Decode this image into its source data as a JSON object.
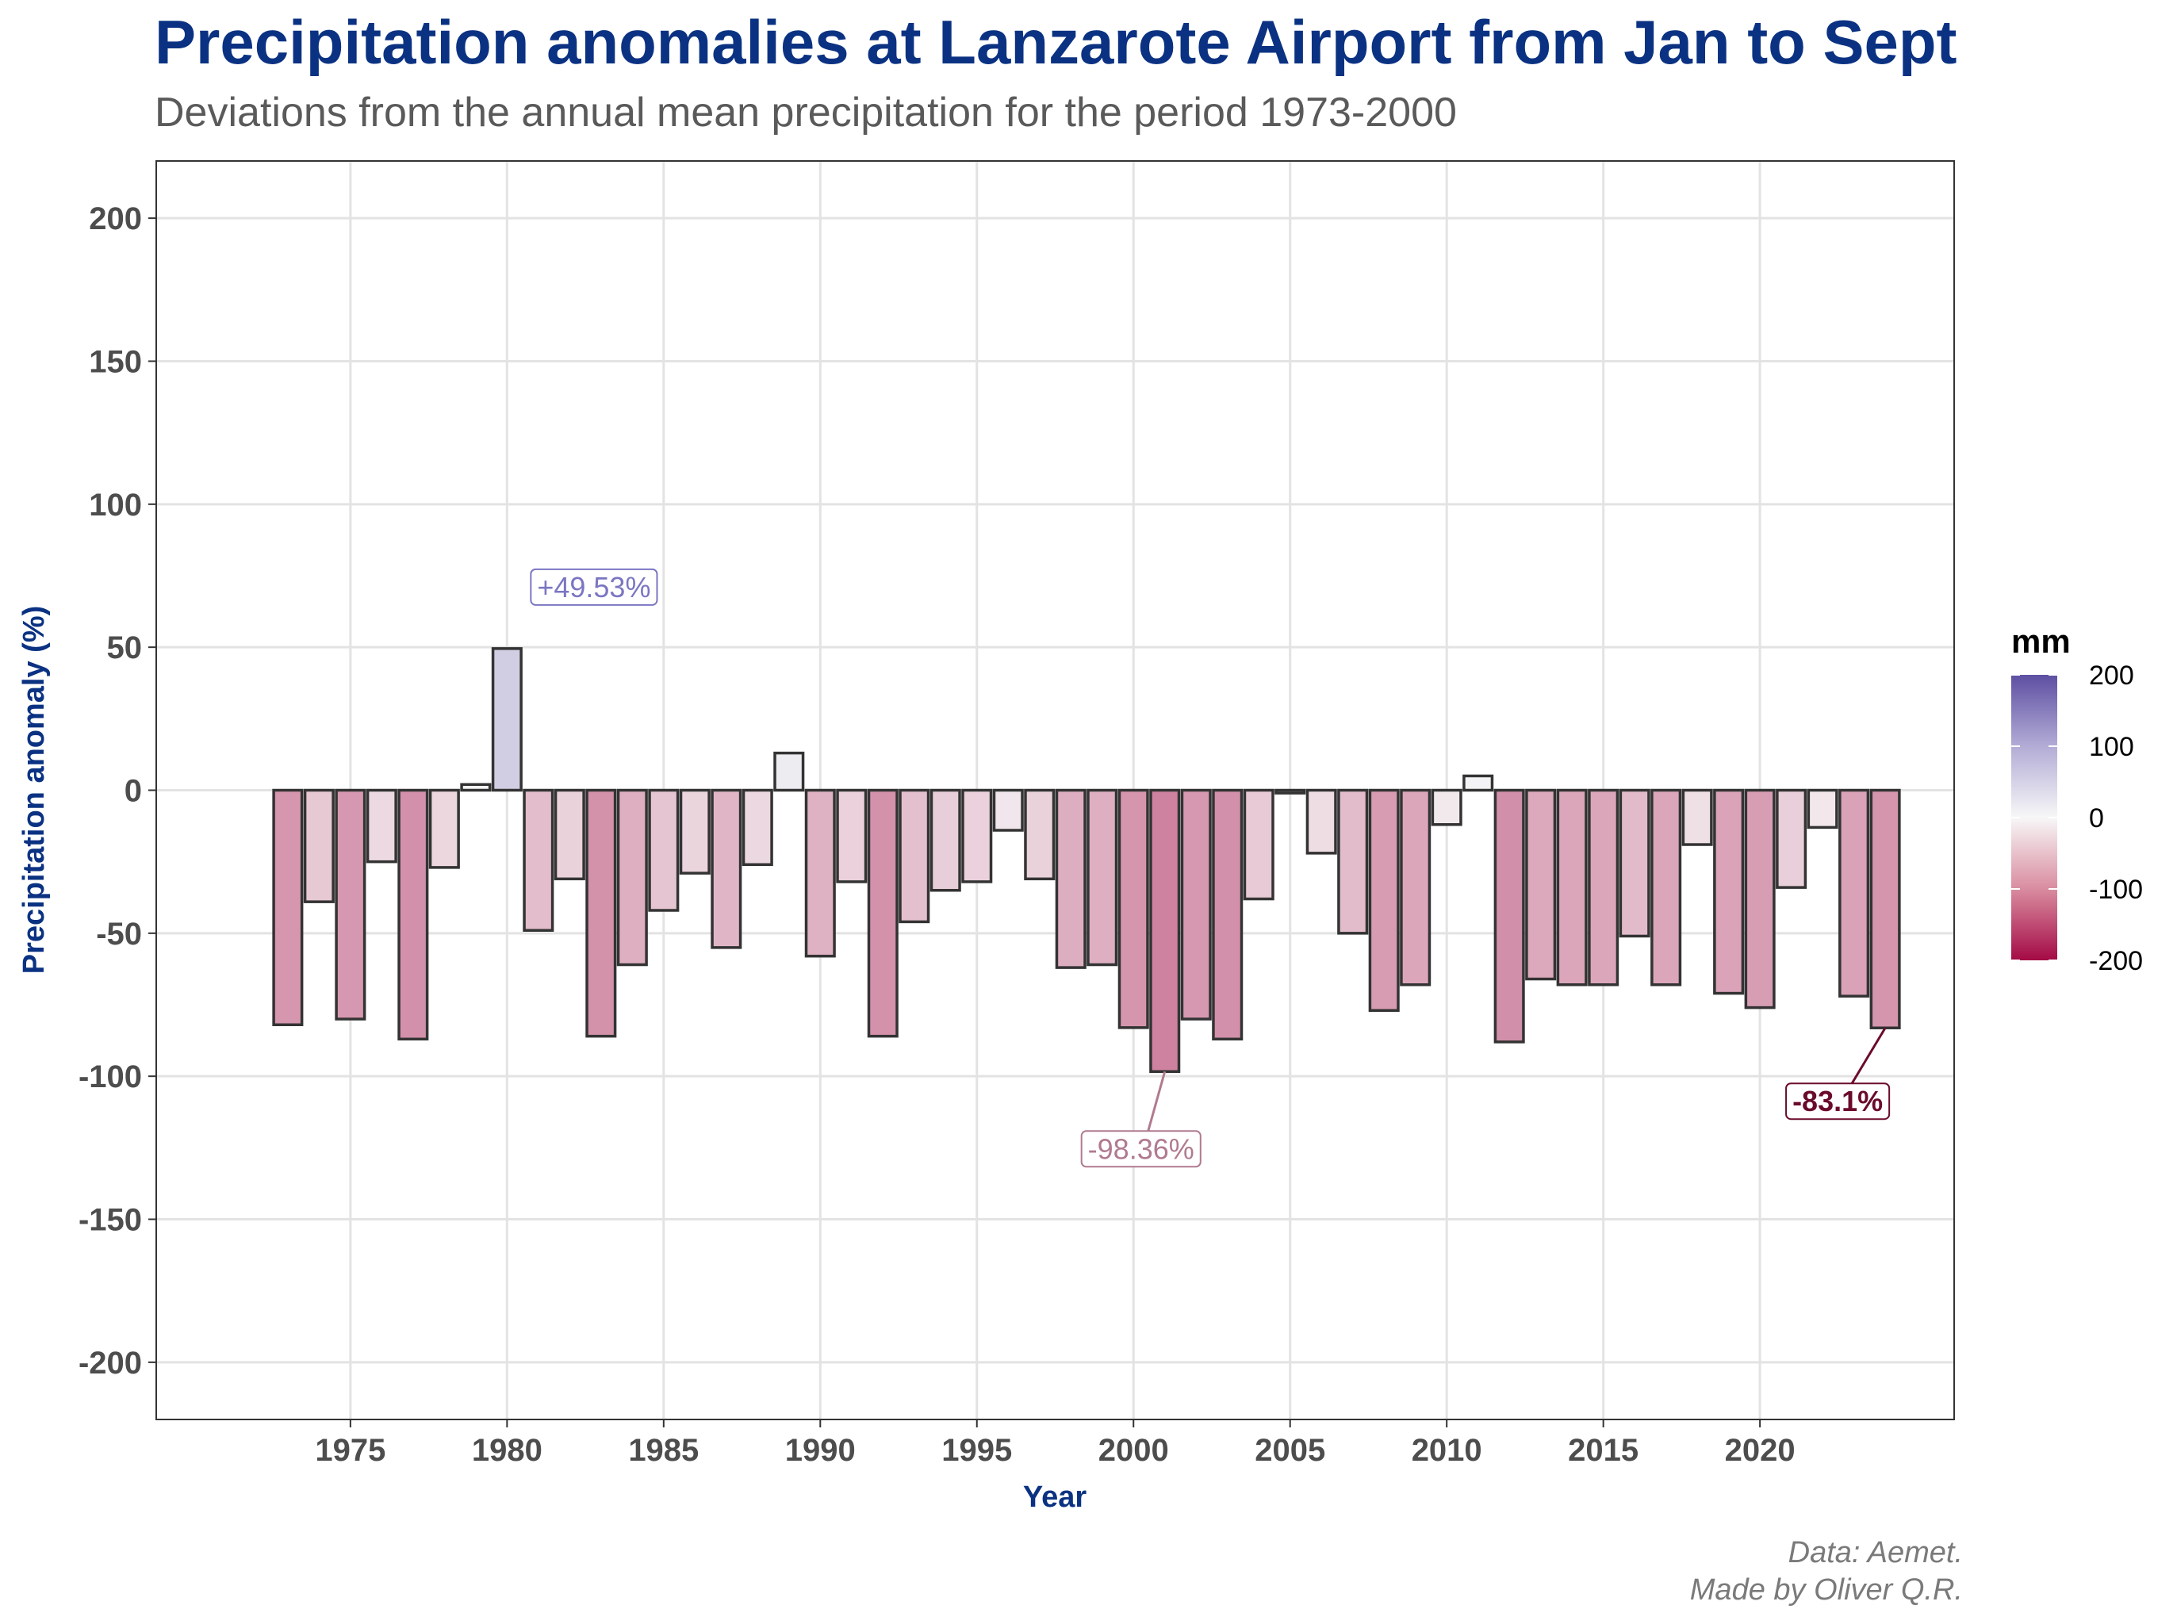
{
  "header": {
    "title": "Precipitation anomalies at Lanzarote Airport from Jan to Sept",
    "subtitle": "Deviations from the annual mean precipitation for the period 1973-2000"
  },
  "caption": {
    "line1": "Data: Aemet.",
    "line2": "Made by Oliver Q.R."
  },
  "chart_data": {
    "type": "bar",
    "title": "Precipitation anomalies at Lanzarote Airport from Jan to Sept",
    "subtitle": "Deviations from the annual mean precipitation for the period 1973-2000",
    "xlabel": "Year",
    "ylabel": "Precipitation anomaly (%)",
    "ylim": [
      -220,
      220
    ],
    "xlim": [
      1968.8,
      2026.2
    ],
    "x_ticks": [
      1975,
      1980,
      1985,
      1990,
      1995,
      2000,
      2005,
      2010,
      2015,
      2020
    ],
    "y_ticks": [
      -200,
      -150,
      -100,
      -50,
      0,
      50,
      100,
      150,
      200
    ],
    "grid": true,
    "categories": [
      1973,
      1974,
      1975,
      1976,
      1977,
      1978,
      1979,
      1980,
      1981,
      1982,
      1983,
      1984,
      1985,
      1986,
      1987,
      1988,
      1989,
      1990,
      1991,
      1992,
      1993,
      1994,
      1995,
      1996,
      1997,
      1998,
      1999,
      2000,
      2001,
      2002,
      2003,
      2004,
      2005,
      2006,
      2007,
      2008,
      2009,
      2010,
      2011,
      2012,
      2013,
      2014,
      2015,
      2016,
      2017,
      2018,
      2019,
      2020,
      2021,
      2022,
      2023,
      2024
    ],
    "values": [
      -82,
      -39,
      -80,
      -25,
      -87,
      -27,
      2,
      49.53,
      -49,
      -31,
      -86,
      -61,
      -42,
      -29,
      -55,
      -26,
      13,
      -58,
      -32,
      -86,
      -46,
      -35,
      -32,
      -14,
      -31,
      -62,
      -61,
      -83,
      -98.36,
      -80,
      -87,
      -38,
      -1,
      -22,
      -50,
      -77,
      -68,
      -12,
      5,
      -88,
      -66,
      -68,
      -68,
      -51,
      -68,
      -19,
      -71,
      -76,
      -34,
      -13,
      -72,
      -83.1
    ],
    "fill_scale": {
      "title": "mm",
      "colors": {
        "low": "#a40a45",
        "mid": "#f7f7f7",
        "high": "#5e4fa2"
      },
      "range": [
        -200,
        200
      ],
      "ticks": [
        200,
        100,
        0,
        -100,
        -200
      ]
    },
    "legend_position": "right",
    "annotations": [
      {
        "year": 1980,
        "value": 49.53,
        "label": "+49.53%",
        "color": "#7b76c2",
        "bold": false
      },
      {
        "year": 2001,
        "value": -98.36,
        "label": "-98.36%",
        "color": "#b07a8f",
        "bold": false
      },
      {
        "year": 2024,
        "value": -83.1,
        "label": "-83.1%",
        "color": "#6b0b2c",
        "bold": true
      }
    ]
  }
}
